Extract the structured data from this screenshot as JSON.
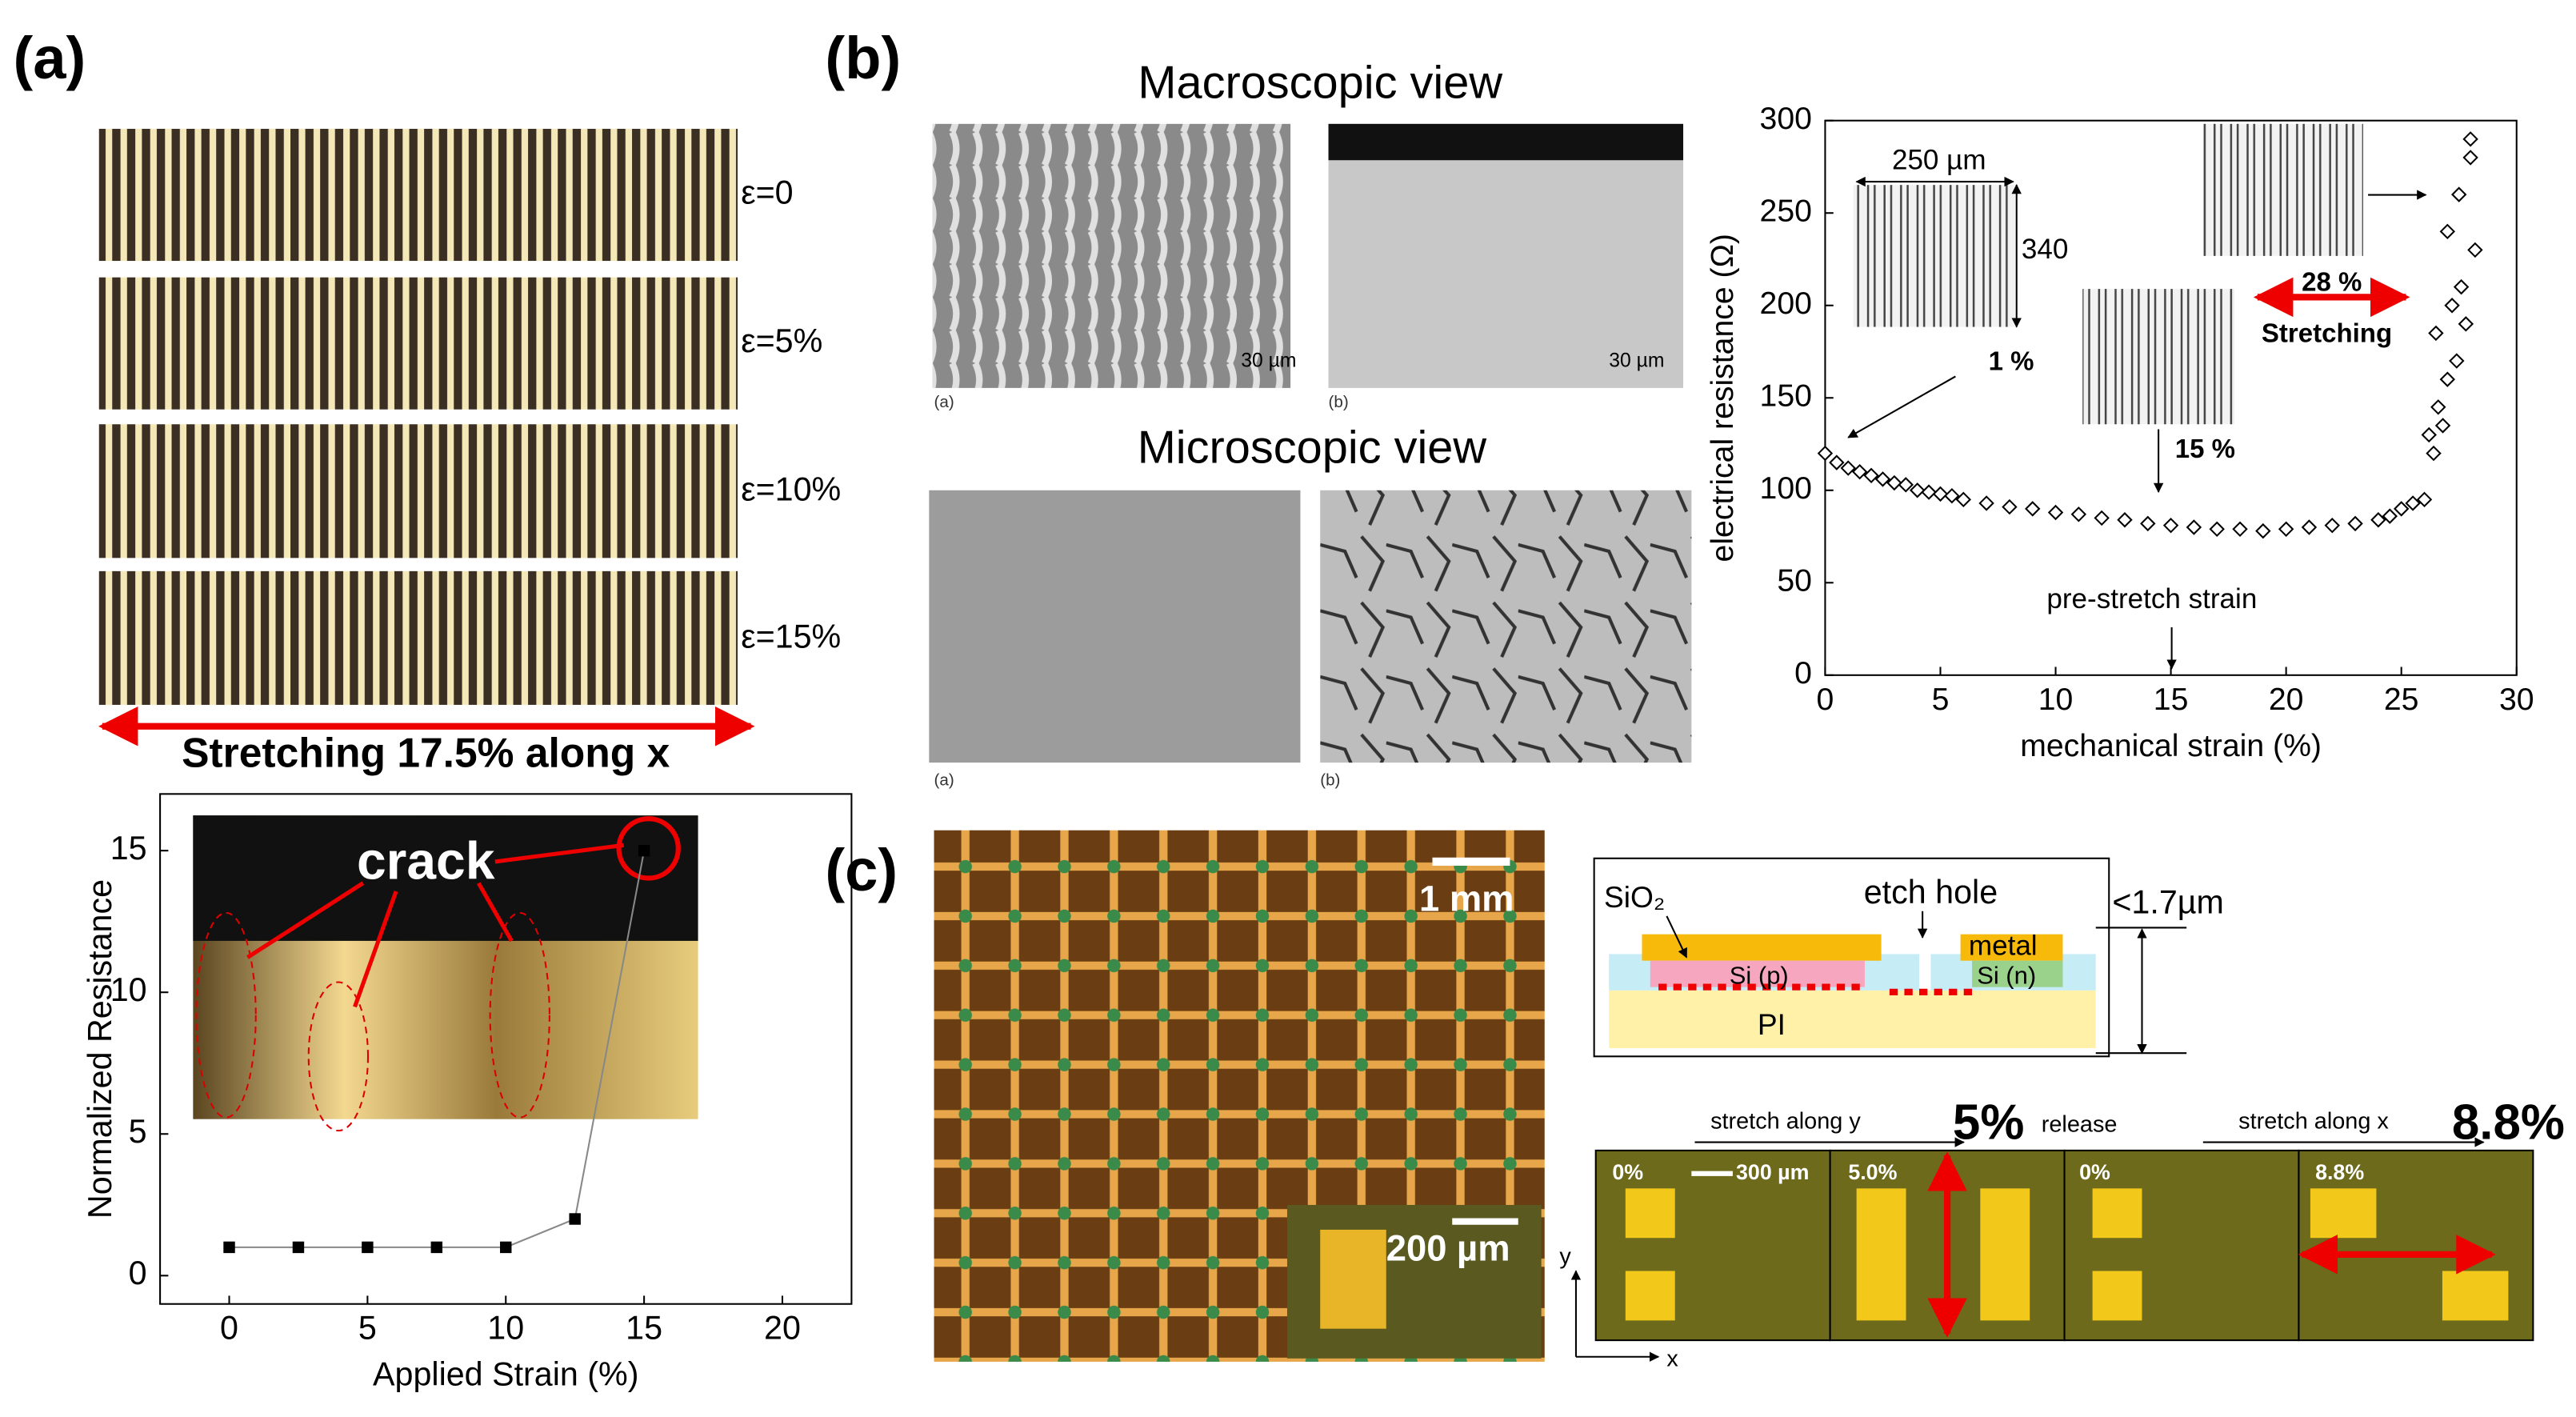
{
  "panel_labels": [
    "(a)",
    "(b)",
    "(c)"
  ],
  "panel_a": {
    "strain_labels": [
      "ε=0",
      "ε=5%",
      "ε=10%",
      "ε=15%"
    ],
    "stretch_label": "Stretching 17.5% along x"
  },
  "panel_b": {
    "macro_title": "Macroscopic view",
    "micro_title": "Microscopic view",
    "scale_bars": [
      "30 µm",
      "30 µm"
    ],
    "image_labels": [
      "(a)",
      "(b)",
      "(a)",
      "(b)"
    ]
  },
  "panel_c": {
    "scale_bars": [
      "1 mm",
      "200 µm"
    ],
    "cross_section": {
      "oxide": "SiO₂",
      "hole": "etch hole",
      "thickness": "<1.7µm",
      "metal": "metal",
      "p_region": "Si (p)",
      "n_region": "Si (n)",
      "substrate": "PI"
    },
    "sequence": {
      "step1": "stretch along y",
      "strain1": "5%",
      "step2": "release",
      "step3": "stretch along x",
      "strain2": "8.8%",
      "frame_labels": [
        "0%",
        "5.0%",
        "0%",
        "8.8%"
      ],
      "scale_bar": "300 µm",
      "axis_y": "y",
      "axis_x": "x"
    }
  },
  "chart_data": [
    {
      "type": "line",
      "xlabel": "Applied Strain (%)",
      "ylabel": "Normalized Resistance",
      "annotation": "crack",
      "x": [
        0,
        2.5,
        5,
        7.5,
        10,
        12.5,
        15
      ],
      "values": [
        1,
        1,
        1,
        1,
        1,
        2,
        15
      ],
      "color": "#000000",
      "xlim": [
        -2.5,
        22.5
      ],
      "ylim": [
        -1,
        17
      ],
      "xticks": [
        0,
        5,
        10,
        15,
        20
      ],
      "yticks": [
        0,
        5,
        10,
        15
      ]
    },
    {
      "type": "scatter",
      "xlabel": "mechanical strain (%)",
      "ylabel": "electrical resistance (Ω)",
      "annotations": [
        "250 µm",
        "340",
        "1 %",
        "15 %",
        "28 %",
        "Stretching",
        "pre-stretch strain"
      ],
      "x": [
        0,
        0.5,
        1,
        1.5,
        2,
        2.5,
        3,
        3.5,
        4,
        4.5,
        5,
        5.5,
        6,
        7,
        8,
        9,
        10,
        11,
        12,
        13,
        14,
        15,
        16,
        17,
        18,
        19,
        20,
        21,
        22,
        23,
        24,
        24.5,
        25,
        25.5,
        26,
        26.2,
        26.4,
        26.6,
        26.8,
        27,
        27.2,
        27.4,
        27.6,
        27.8,
        28,
        28.2,
        26.5,
        27,
        27.5,
        28
      ],
      "values": [
        120,
        115,
        112,
        110,
        108,
        106,
        104,
        103,
        100,
        99,
        98,
        97,
        95,
        93,
        91,
        90,
        88,
        87,
        85,
        84,
        82,
        81,
        80,
        79,
        79,
        78,
        79,
        80,
        81,
        82,
        84,
        86,
        90,
        93,
        95,
        130,
        120,
        145,
        135,
        160,
        200,
        170,
        210,
        190,
        280,
        230,
        185,
        240,
        260,
        290
      ],
      "color": "#000000",
      "xlim": [
        0,
        30
      ],
      "ylim": [
        0,
        300
      ],
      "xticks": [
        0,
        5,
        10,
        15,
        20,
        25,
        30
      ],
      "yticks": [
        0,
        50,
        100,
        150,
        200,
        250,
        300
      ]
    }
  ]
}
